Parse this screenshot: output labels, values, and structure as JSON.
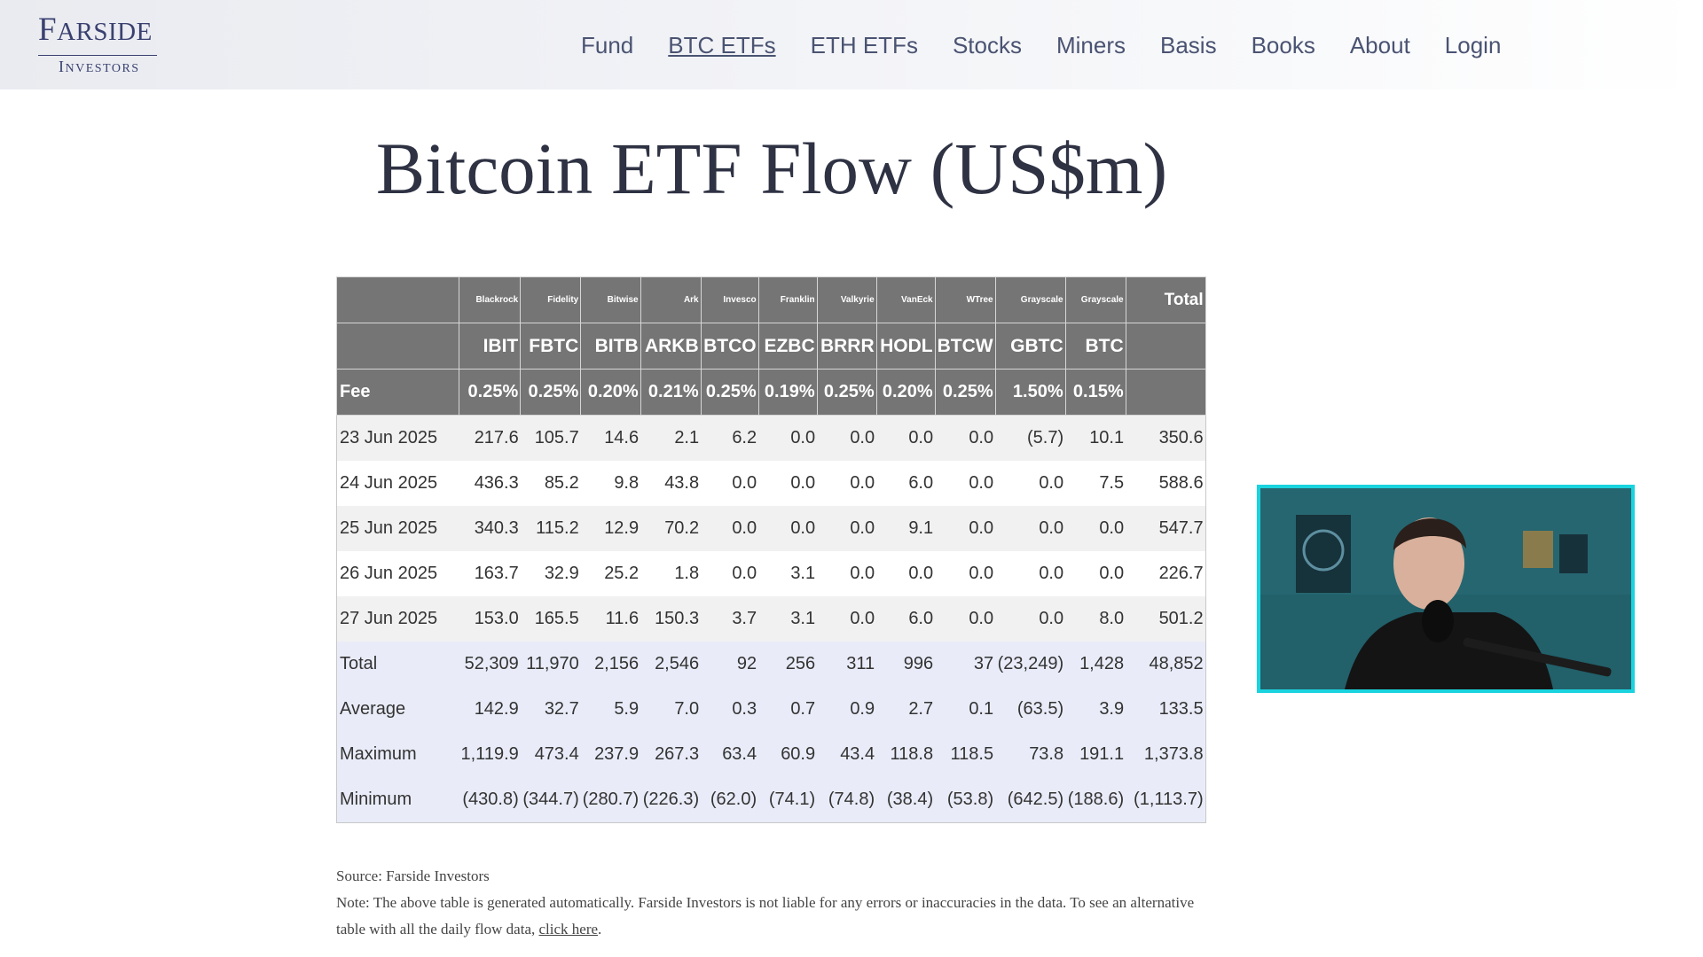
{
  "logo": {
    "main": "Farside",
    "sub": "Investors"
  },
  "nav": [
    {
      "label": "Fund",
      "active": false
    },
    {
      "label": "BTC ETFs",
      "active": true
    },
    {
      "label": "ETH ETFs",
      "active": false
    },
    {
      "label": "Stocks",
      "active": false
    },
    {
      "label": "Miners",
      "active": false
    },
    {
      "label": "Basis",
      "active": false
    },
    {
      "label": "Books",
      "active": false
    },
    {
      "label": "About",
      "active": false
    },
    {
      "label": "Login",
      "active": false
    }
  ],
  "page": {
    "title": "Bitcoin ETF Flow (US$m)"
  },
  "table": {
    "total_label": "Total",
    "fee_label": "Fee",
    "issuers": [
      "Blackrock",
      "Fidelity",
      "Bitwise",
      "Ark",
      "Invesco",
      "Franklin",
      "Valkyrie",
      "VanEck",
      "WTree",
      "Grayscale",
      "Grayscale"
    ],
    "tickers": [
      "IBIT",
      "FBTC",
      "BITB",
      "ARKB",
      "BTCO",
      "EZBC",
      "BRRR",
      "HODL",
      "BTCW",
      "GBTC",
      "BTC"
    ],
    "fees": [
      "0.25%",
      "0.25%",
      "0.20%",
      "0.21%",
      "0.25%",
      "0.19%",
      "0.25%",
      "0.20%",
      "0.25%",
      "1.50%",
      "0.15%"
    ],
    "rows": [
      {
        "date": "23 Jun 2025",
        "values": [
          "217.6",
          "105.7",
          "14.6",
          "2.1",
          "6.2",
          "0.0",
          "0.0",
          "0.0",
          "0.0",
          "(5.7)",
          "10.1"
        ],
        "total": "350.6"
      },
      {
        "date": "24 Jun 2025",
        "values": [
          "436.3",
          "85.2",
          "9.8",
          "43.8",
          "0.0",
          "0.0",
          "0.0",
          "6.0",
          "0.0",
          "0.0",
          "7.5"
        ],
        "total": "588.6"
      },
      {
        "date": "25 Jun 2025",
        "values": [
          "340.3",
          "115.2",
          "12.9",
          "70.2",
          "0.0",
          "0.0",
          "0.0",
          "9.1",
          "0.0",
          "0.0",
          "0.0"
        ],
        "total": "547.7"
      },
      {
        "date": "26 Jun 2025",
        "values": [
          "163.7",
          "32.9",
          "25.2",
          "1.8",
          "0.0",
          "3.1",
          "0.0",
          "0.0",
          "0.0",
          "0.0",
          "0.0"
        ],
        "total": "226.7"
      },
      {
        "date": "27 Jun 2025",
        "values": [
          "153.0",
          "165.5",
          "11.6",
          "150.3",
          "3.7",
          "3.1",
          "0.0",
          "6.0",
          "0.0",
          "0.0",
          "8.0"
        ],
        "total": "501.2"
      }
    ],
    "summary": [
      {
        "label": "Total",
        "values": [
          "52,309",
          "11,970",
          "2,156",
          "2,546",
          "92",
          "256",
          "311",
          "996",
          "37",
          "(23,249)",
          "1,428"
        ],
        "total": "48,852"
      },
      {
        "label": "Average",
        "values": [
          "142.9",
          "32.7",
          "5.9",
          "7.0",
          "0.3",
          "0.7",
          "0.9",
          "2.7",
          "0.1",
          "(63.5)",
          "3.9"
        ],
        "total": "133.5"
      },
      {
        "label": "Maximum",
        "values": [
          "1,119.9",
          "473.4",
          "237.9",
          "267.3",
          "63.4",
          "60.9",
          "43.4",
          "118.8",
          "118.5",
          "73.8",
          "191.1"
        ],
        "total": "1,373.8"
      },
      {
        "label": "Minimum",
        "values": [
          "(430.8)",
          "(344.7)",
          "(280.7)",
          "(226.3)",
          "(62.0)",
          "(74.1)",
          "(74.8)",
          "(38.4)",
          "(53.8)",
          "(642.5)",
          "(188.6)"
        ],
        "total": "(1,113.7)"
      }
    ]
  },
  "notes": {
    "source": "Source: Farside Investors",
    "note": "Note: The above table is generated automatically. Farside Investors is not liable for any errors or inaccuracies in the data. To see an alternative table with all the daily flow data, ",
    "link": "click here",
    "end": "."
  },
  "colors": {
    "header_bg": "#757575",
    "negative": "#e0303f",
    "summary_bg": "#e9ecf8",
    "webcam_border": "#19d3df"
  }
}
